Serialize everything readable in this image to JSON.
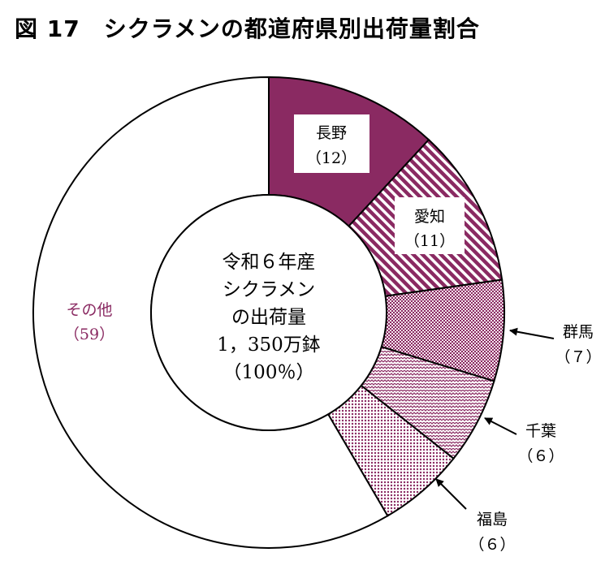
{
  "chart_data": {
    "type": "pie",
    "title": "図 17　シクラメンの都道府県別出荷量割合",
    "center_text": [
      "令和６年産",
      "シクラメン",
      "の出荷量",
      "1，350万鉢",
      "（100％）"
    ],
    "slices": [
      {
        "name": "長野",
        "value": 12,
        "value_label": "（12）",
        "color": "#8a2a62"
      },
      {
        "name": "愛知",
        "value": 11,
        "value_label": "（11）",
        "color": "#8a2a62"
      },
      {
        "name": "群馬",
        "value": 7,
        "value_label": "（７）",
        "color": "#8a2a62"
      },
      {
        "name": "千葉",
        "value": 6,
        "value_label": "（６）",
        "color": "#8a2a62"
      },
      {
        "name": "福島",
        "value": 6,
        "value_label": "（６）",
        "color": "#8a2a62"
      },
      {
        "name": "その他",
        "value": 59,
        "value_label": "（59）",
        "color": "#ffffff"
      }
    ]
  }
}
